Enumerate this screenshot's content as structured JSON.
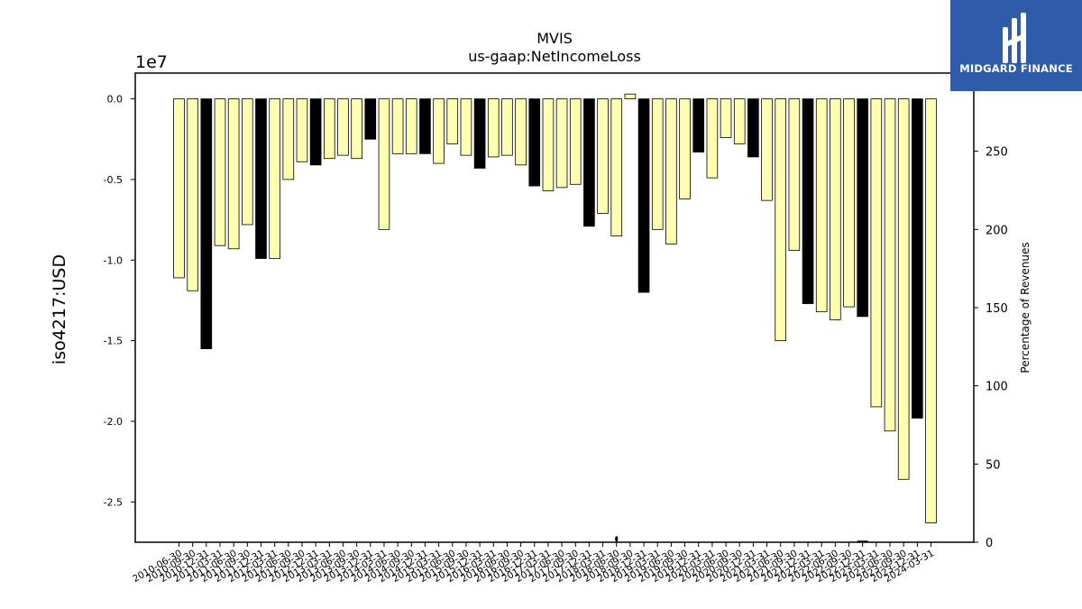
{
  "logo": {
    "text": "MIDGARD FINANCE",
    "background": "#2f5ca8"
  },
  "chart_data": {
    "type": "bar",
    "title": "MVIS",
    "subtitle": "us-gaap:NetIncomeLoss",
    "ylabel": "iso4217:USD",
    "y_multiplier_label": "1e7",
    "y2label": "Percentage of Revenues",
    "ylim": [
      -27500000.0,
      1600000.0
    ],
    "y2lim": [
      0,
      300
    ],
    "yticks": [
      0.0,
      -0.5,
      -1.0,
      -1.5,
      -2.0,
      -2.5
    ],
    "y2ticks": [
      0,
      50,
      100,
      150,
      200,
      250,
      300
    ],
    "colors": {
      "quarterly": "#ffffb2",
      "annual": "#000000",
      "edge": "#000000"
    },
    "categories": [
      "2010-06-30",
      "2010-09-30",
      "2010-12-31",
      "2011-03-31",
      "2011-06-30",
      "2011-09-30",
      "2011-12-31",
      "2012-03-31",
      "2012-06-30",
      "2012-09-30",
      "2012-12-31",
      "2013-03-31",
      "2013-06-30",
      "2013-09-30",
      "2013-12-31",
      "2014-03-31",
      "2014-06-30",
      "2014-09-30",
      "2014-12-31",
      "2015-03-31",
      "2015-06-30",
      "2015-09-30",
      "2015-12-31",
      "2016-03-31",
      "2016-06-30",
      "2016-09-30",
      "2016-12-31",
      "2017-03-31",
      "2017-06-30",
      "2017-09-30",
      "2017-12-31",
      "2018-03-31",
      "2018-06-30",
      "2018-09-30",
      "2018-12-31",
      "2019-03-31",
      "2019-06-30",
      "2019-09-30",
      "2019-12-31",
      "2020-03-31",
      "2020-06-30",
      "2020-09-30",
      "2020-12-31",
      "2021-03-31",
      "2021-06-30",
      "2021-09-30",
      "2021-12-31",
      "2022-03-31",
      "2022-06-30",
      "2022-09-30",
      "2022-12-31",
      "2023-03-31",
      "2023-06-30",
      "2023-09-30",
      "2023-12-31",
      "2024-03-31"
    ],
    "values": [
      -11100000,
      -11900000,
      -15500000,
      -9100000,
      -9300000,
      -7800000,
      -9900000,
      -9900000,
      -5000000,
      -3900000,
      -4100000,
      -3700000,
      -3500000,
      -3700000,
      -2500000,
      -8100000,
      -3400000,
      -3400000,
      -3400000,
      -4000000,
      -2800000,
      -3500000,
      -4300000,
      -3600000,
      -3500000,
      -4100000,
      -5400000,
      -5700000,
      -5500000,
      -5300000,
      -7900000,
      -7100000,
      -8500000,
      300000,
      -12000000,
      -8100000,
      -9000000,
      -6200000,
      -3300000,
      -4900000,
      -2400000,
      -2800000,
      -3600000,
      -6300000,
      -15000000,
      -9400000,
      -12700000,
      -13200000,
      -13700000,
      -12900000,
      -13500000,
      -19100000,
      -20600000,
      -23600000,
      -19800000,
      -26300000
    ],
    "annual": [
      false,
      false,
      true,
      false,
      false,
      false,
      true,
      false,
      false,
      false,
      true,
      false,
      false,
      false,
      true,
      false,
      false,
      false,
      true,
      false,
      false,
      false,
      true,
      false,
      false,
      false,
      true,
      false,
      false,
      false,
      true,
      false,
      false,
      false,
      true,
      false,
      false,
      false,
      true,
      false,
      false,
      false,
      true,
      false,
      false,
      false,
      true,
      false,
      false,
      false,
      true,
      false,
      false,
      false,
      true,
      false
    ],
    "percentage_of_revenues": {
      "markers": [
        {
          "category": "2018-06-30",
          "value": 1
        },
        {
          "category": "2022-12-31",
          "value": 0
        }
      ]
    }
  }
}
